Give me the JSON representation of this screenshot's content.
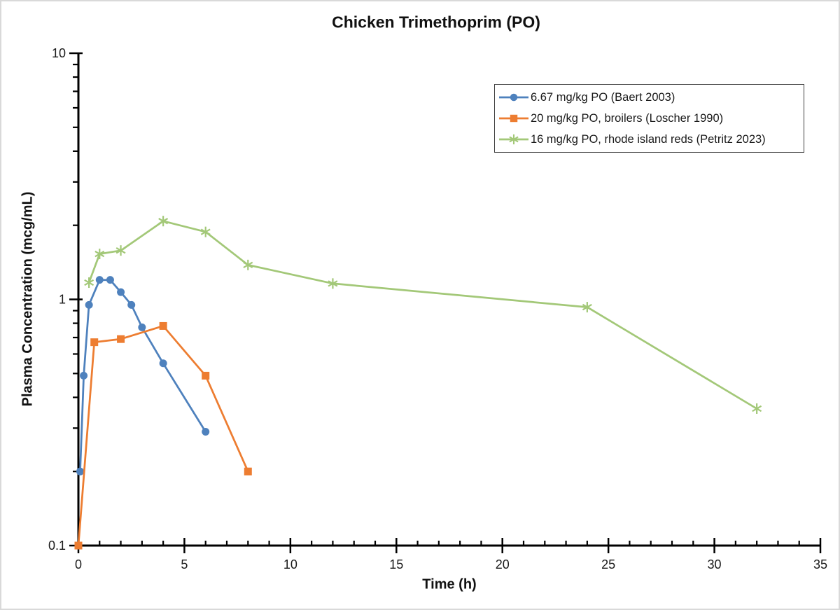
{
  "chart_data": {
    "type": "line",
    "title": "Chicken Trimethoprim (PO)",
    "xlabel": "Time (h)",
    "ylabel": "Plasma Concentration (mcg/mL)",
    "x_axis": {
      "min": 0,
      "max": 35,
      "major_step": 5,
      "minor_step": 1
    },
    "y_axis": {
      "scale": "log",
      "min": 0.1,
      "max": 10,
      "major_tick_labels": [
        "10",
        "1",
        "0.1"
      ],
      "major_tick_values": [
        10,
        1,
        0.1
      ]
    },
    "grid": "off",
    "legend_position": "top-right-inside",
    "series": [
      {
        "name": "6.67 mg/kg PO (Baert 2003)",
        "color": "#4E81BD",
        "marker": "circle",
        "points": [
          [
            0.083,
            0.2
          ],
          [
            0.25,
            0.49
          ],
          [
            0.5,
            0.95
          ],
          [
            1,
            1.2
          ],
          [
            1.5,
            1.2
          ],
          [
            2,
            1.07
          ],
          [
            2.5,
            0.95
          ],
          [
            3,
            0.77
          ],
          [
            4,
            0.55
          ],
          [
            6,
            0.29
          ]
        ]
      },
      {
        "name": "20 mg/kg PO, broilers (Loscher 1990)",
        "color": "#ED7D31",
        "marker": "square",
        "points": [
          [
            0,
            0.1
          ],
          [
            0.75,
            0.67
          ],
          [
            2,
            0.69
          ],
          [
            4,
            0.78
          ],
          [
            6,
            0.49
          ],
          [
            8,
            0.2
          ]
        ]
      },
      {
        "name": "16 mg/kg PO, rhode island reds (Petritz 2023)",
        "color": "#A3C878",
        "marker": "asterisk",
        "points": [
          [
            0.5,
            1.17
          ],
          [
            1,
            1.53
          ],
          [
            2,
            1.58
          ],
          [
            4,
            2.08
          ],
          [
            6,
            1.88
          ],
          [
            8,
            1.38
          ],
          [
            12,
            1.16
          ],
          [
            24,
            0.93
          ],
          [
            32,
            0.36
          ]
        ]
      }
    ]
  }
}
